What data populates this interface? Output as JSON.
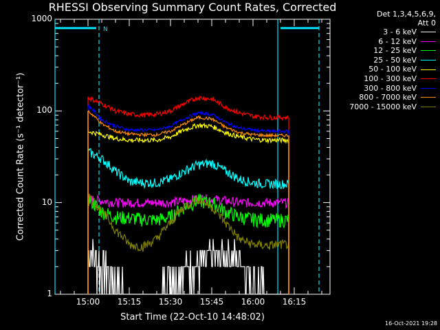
{
  "title": "RHESSI Observing Summary Count Rates, Corrected",
  "detectors_line1": "Det 1,3,4,5,6,9,",
  "detectors_line2": "Att 0",
  "timestamp": "16-Oct-2021 19:28",
  "colors": {
    "background": "#000000",
    "axes": "#ffffff",
    "flag_markers": "#00e5ff"
  },
  "chart_data": {
    "type": "line",
    "title": "RHESSI Observing Summary Count Rates, Corrected",
    "xlabel": "Start Time (22-Oct-10 14:48:02)",
    "ylabel": "Corrected Count Rate (s⁻¹ detector⁻¹)",
    "yscale": "log",
    "ylim": [
      1,
      1000
    ],
    "xlim": [
      "14:48",
      "16:28"
    ],
    "x_ticks": [
      "15:00",
      "15:15",
      "15:30",
      "15:45",
      "16:00",
      "16:15"
    ],
    "y_ticks": [
      "1",
      "10",
      "100",
      "1000"
    ],
    "legend_position": "top-right, outside plot",
    "data_start": "15:00",
    "data_end": "16:13",
    "flags": {
      "solid_intervals": [
        [
          "14:48",
          "15:03"
        ],
        [
          "16:10",
          "16:24"
        ]
      ],
      "level": 800,
      "letter_marker": {
        "label": "N",
        "time": "15:06"
      },
      "solid_vertical_lines": [
        "14:48",
        "16:09"
      ],
      "dashed_vertical_lines": [
        "15:04",
        "16:24"
      ]
    },
    "series": [
      {
        "name": "3 - 6 keV",
        "color": "#ffffff",
        "times": [
          "15:00",
          "15:05",
          "15:10",
          "15:15",
          "15:20",
          "15:25",
          "15:30",
          "15:35",
          "15:40",
          "15:45",
          "15:50",
          "15:55",
          "16:00",
          "16:05",
          "16:10",
          "16:13"
        ],
        "values": [
          3,
          2,
          1.5,
          1,
          1,
          1,
          1.7,
          2,
          2.2,
          2.5,
          2.7,
          2.5,
          1.5,
          1,
          1,
          1
        ]
      },
      {
        "name": "6 - 12 keV",
        "color": "#ff00ff",
        "times": [
          "15:00",
          "15:05",
          "15:10",
          "15:15",
          "15:20",
          "15:25",
          "15:30",
          "15:35",
          "15:40",
          "15:45",
          "15:50",
          "15:55",
          "16:00",
          "16:05",
          "16:10",
          "16:13"
        ],
        "values": [
          11,
          10.5,
          10,
          10,
          10,
          10,
          10,
          10.5,
          11,
          11,
          10.5,
          10,
          10,
          10,
          10,
          10
        ]
      },
      {
        "name": "12 - 25 keV",
        "color": "#00ff00",
        "times": [
          "15:00",
          "15:05",
          "15:10",
          "15:15",
          "15:20",
          "15:25",
          "15:30",
          "15:35",
          "15:40",
          "15:45",
          "15:50",
          "15:55",
          "16:00",
          "16:05",
          "16:10",
          "16:13"
        ],
        "values": [
          11,
          8,
          7,
          6.8,
          6.6,
          6.5,
          7,
          9,
          10.5,
          10,
          8,
          7,
          6.6,
          6.5,
          6.5,
          6.5
        ]
      },
      {
        "name": "25 - 50 keV",
        "color": "#00ffff",
        "times": [
          "15:00",
          "15:05",
          "15:10",
          "15:15",
          "15:20",
          "15:25",
          "15:30",
          "15:35",
          "15:40",
          "15:45",
          "15:50",
          "15:55",
          "16:00",
          "16:05",
          "16:10",
          "16:13"
        ],
        "values": [
          36,
          30,
          22,
          17,
          16.5,
          16.5,
          18,
          22,
          26,
          27,
          22,
          18,
          16.5,
          16,
          16,
          16
        ]
      },
      {
        "name": "50 - 100 keV",
        "color": "#ffff00",
        "times": [
          "15:00",
          "15:05",
          "15:10",
          "15:15",
          "15:20",
          "15:25",
          "15:30",
          "15:35",
          "15:40",
          "15:45",
          "15:50",
          "15:55",
          "16:00",
          "16:05",
          "16:10",
          "16:13"
        ],
        "values": [
          60,
          55,
          50,
          48,
          48,
          48,
          52,
          62,
          70,
          68,
          58,
          52,
          49,
          48,
          48,
          48
        ]
      },
      {
        "name": "100 - 300 keV",
        "color": "#ff0000",
        "times": [
          "15:00",
          "15:05",
          "15:10",
          "15:15",
          "15:20",
          "15:25",
          "15:30",
          "15:35",
          "15:40",
          "15:45",
          "15:50",
          "15:55",
          "16:00",
          "16:05",
          "16:10",
          "16:13"
        ],
        "values": [
          140,
          120,
          100,
          92,
          90,
          92,
          100,
          120,
          140,
          135,
          110,
          95,
          88,
          85,
          85,
          85
        ]
      },
      {
        "name": "300 - 800 keV",
        "color": "#0000ff",
        "times": [
          "15:00",
          "15:05",
          "15:10",
          "15:15",
          "15:20",
          "15:25",
          "15:30",
          "15:35",
          "15:40",
          "15:45",
          "15:50",
          "15:55",
          "16:00",
          "16:05",
          "16:10",
          "16:13"
        ],
        "values": [
          115,
          80,
          68,
          62,
          62,
          62,
          68,
          82,
          95,
          92,
          75,
          65,
          62,
          60,
          60,
          60
        ]
      },
      {
        "name": "800 - 7000 keV",
        "color": "#ff8c00",
        "times": [
          "15:00",
          "15:05",
          "15:10",
          "15:15",
          "15:20",
          "15:25",
          "15:30",
          "15:35",
          "15:40",
          "15:45",
          "15:50",
          "15:55",
          "16:00",
          "16:05",
          "16:10",
          "16:13"
        ],
        "values": [
          100,
          72,
          60,
          56,
          55,
          55,
          60,
          72,
          85,
          82,
          66,
          58,
          55,
          54,
          54,
          54
        ]
      },
      {
        "name": "7000 - 15000 keV",
        "color": "#808000",
        "times": [
          "15:00",
          "15:05",
          "15:10",
          "15:15",
          "15:20",
          "15:25",
          "15:30",
          "15:35",
          "15:40",
          "15:45",
          "15:50",
          "15:55",
          "16:00",
          "16:05",
          "16:10",
          "16:13"
        ],
        "values": [
          12,
          8,
          5,
          3.5,
          3.3,
          4,
          6,
          9,
          11,
          9,
          6,
          4,
          3.5,
          3.4,
          3.5,
          3.5
        ]
      }
    ]
  }
}
